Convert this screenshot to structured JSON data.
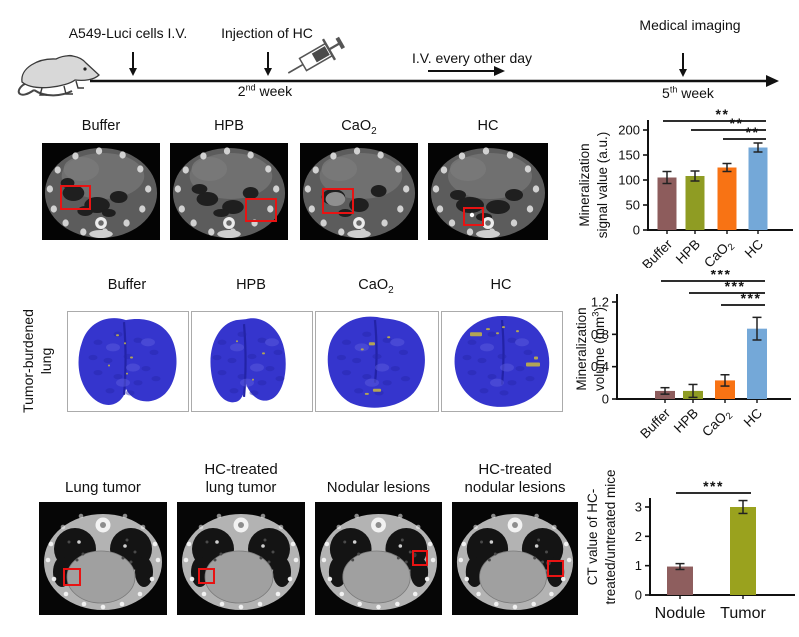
{
  "figure": {
    "timeline": {
      "cells_label": "A549-Luci cells I.V.",
      "injection_label": "Injection of HC",
      "iv_label": "I.V. every other day",
      "imaging_label": "Medical  imaging",
      "week2": {
        "num": "2",
        "sup": "nd",
        "rest": " week"
      },
      "week5": {
        "num": "5",
        "sup": "th",
        "rest": " week"
      }
    },
    "groups": [
      {
        "label": "Buffer",
        "sub": ""
      },
      {
        "label": "HPB",
        "sub": ""
      },
      {
        "label": "CaO",
        "sub": "2"
      },
      {
        "label": "HC",
        "sub": ""
      }
    ],
    "row2_side_label": {
      "line1": "Tumor-burdened",
      "line2": "lung"
    },
    "row3_labels": [
      {
        "line1": "Lung tumor",
        "line2": ""
      },
      {
        "line1": "HC-treated",
        "line2": "lung tumor"
      },
      {
        "line1": "Nodular lesions",
        "line2": ""
      },
      {
        "line1": "HC-treated",
        "line2": "nodular lesions"
      }
    ]
  },
  "chart_data": [
    {
      "type": "bar",
      "ylabel": "Mineralization signal value (a.u.)",
      "ylabel_lines": [
        {
          "pre": "Mineralization",
          "sup": "",
          "post": ""
        },
        {
          "pre": "signal value (a.u.)",
          "sup": "",
          "post": ""
        }
      ],
      "categories": [
        {
          "label": "Buffer",
          "sub": ""
        },
        {
          "label": "HPB",
          "sub": ""
        },
        {
          "label": "CaO",
          "sub": "2"
        },
        {
          "label": "HC",
          "sub": ""
        }
      ],
      "values": [
        105,
        108,
        125,
        165
      ],
      "errors": [
        12,
        10,
        8,
        9
      ],
      "bar_colors": [
        "#8d5c5c",
        "#8f9c23",
        "#f87314",
        "#74a8d8"
      ],
      "ylim": [
        0,
        200
      ],
      "yticks": [
        0,
        50,
        100,
        150,
        200
      ],
      "ytick_labels": [
        "0",
        "50",
        "100",
        "150",
        "200"
      ],
      "significance": [
        {
          "from": 0,
          "to": 3,
          "label": "**"
        },
        {
          "from": 1,
          "to": 3,
          "label": "**"
        },
        {
          "from": 2,
          "to": 3,
          "label": "**"
        }
      ]
    },
    {
      "type": "bar",
      "ylabel": "Mineralization volume (mm³)",
      "ylabel_lines": [
        {
          "pre": "Mineralization",
          "sup": "",
          "post": ""
        },
        {
          "pre": "volume (mm",
          "sup": "3",
          "post": ")"
        }
      ],
      "categories": [
        {
          "label": "Buffer",
          "sub": ""
        },
        {
          "label": "HPB",
          "sub": ""
        },
        {
          "label": "CaO",
          "sub": "2"
        },
        {
          "label": "HC",
          "sub": ""
        }
      ],
      "values": [
        0.1,
        0.1,
        0.23,
        0.87
      ],
      "errors": [
        0.04,
        0.08,
        0.07,
        0.14
      ],
      "bar_colors": [
        "#8d5c5c",
        "#8f9c23",
        "#f87314",
        "#74a8d8"
      ],
      "ylim": [
        0,
        1.2
      ],
      "yticks": [
        0,
        0.4,
        0.8,
        1.2
      ],
      "ytick_labels": [
        "0",
        "0.4",
        "0.8",
        "1.2"
      ],
      "significance": [
        {
          "from": 0,
          "to": 3,
          "label": "***"
        },
        {
          "from": 1,
          "to": 3,
          "label": "***"
        },
        {
          "from": 2,
          "to": 3,
          "label": "***"
        }
      ]
    },
    {
      "type": "bar",
      "ylabel": "CT value of HC-treated/untreated mice",
      "ylabel_lines": [
        {
          "pre": "CT value of HC-",
          "sup": "",
          "post": ""
        },
        {
          "pre": "treated/untreated mice",
          "sup": "",
          "post": ""
        }
      ],
      "categories": [
        {
          "label": "Nodule",
          "sub": ""
        },
        {
          "label": "Tumor",
          "sub": ""
        }
      ],
      "values": [
        0.97,
        3.0
      ],
      "errors": [
        0.1,
        0.22
      ],
      "bar_colors": [
        "#8e5e5e",
        "#9aa21e"
      ],
      "ylim": [
        0,
        3
      ],
      "yticks": [
        0,
        1,
        2,
        3
      ],
      "ytick_labels": [
        "0",
        "1",
        "2",
        "3"
      ],
      "significance": [
        {
          "from": 0,
          "to": 1,
          "label": "***"
        }
      ]
    }
  ],
  "colors": {
    "bar_maroon": "#8d5c5c",
    "bar_olive": "#8f9c23",
    "bar_orange": "#f87314",
    "bar_blue": "#74a8d8",
    "roi_red": "#e81313",
    "lung_blue": "#3535cd"
  }
}
